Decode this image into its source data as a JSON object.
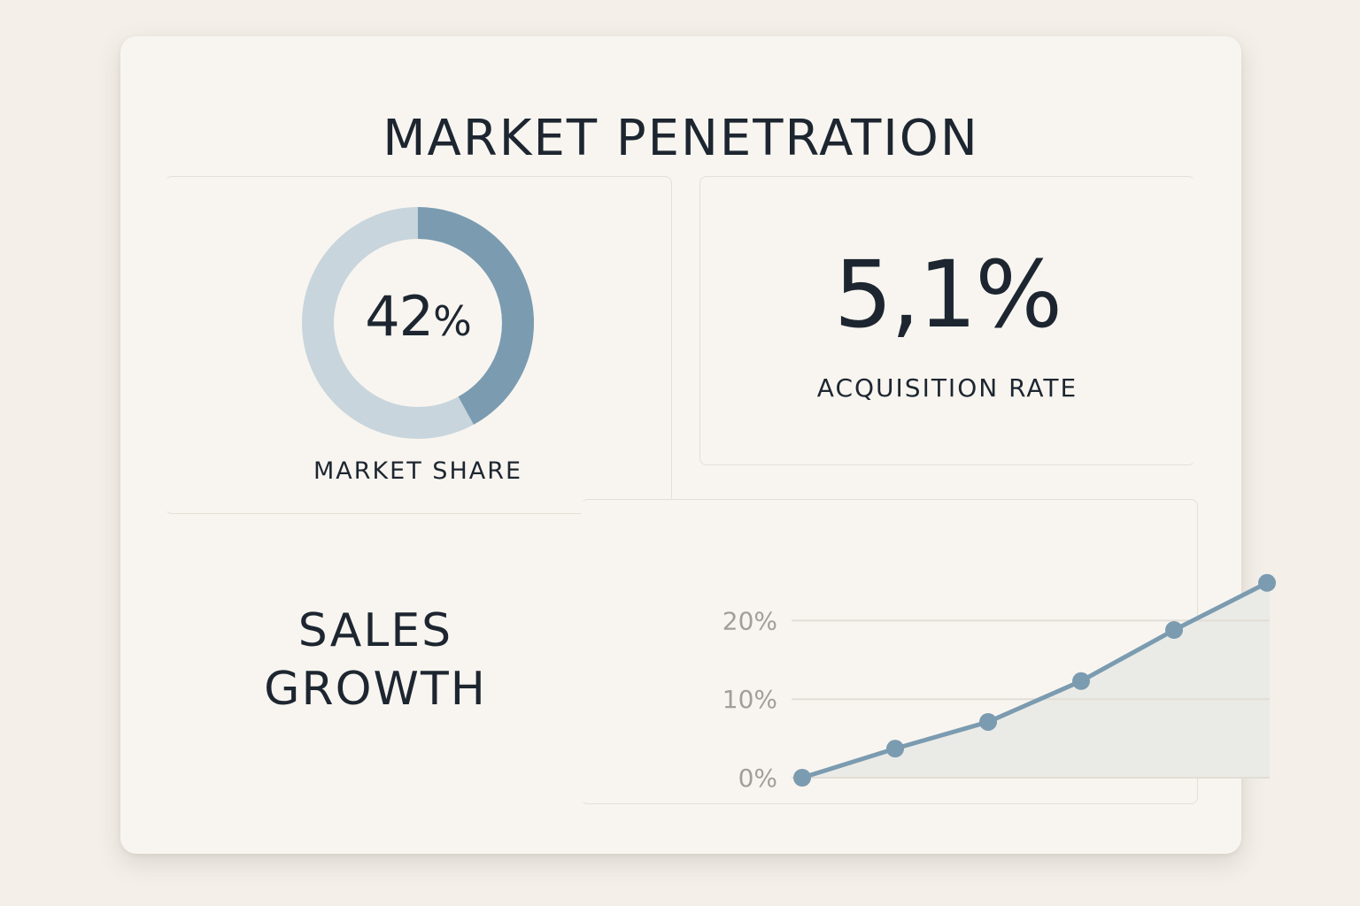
{
  "title": "MARKET PENETRATION",
  "market_share": {
    "value": 42,
    "number": "42",
    "unit": "%",
    "label": "MARKET SHARE",
    "colors": {
      "filled": "#7b9bb0",
      "remaining": "#c8d5dc"
    }
  },
  "acquisition": {
    "value": "5,1%",
    "label": "ACQUISITION RATE"
  },
  "sales_growth": {
    "title_lines": [
      "SALES",
      "GROWTH"
    ]
  },
  "chart_data": {
    "type": "area",
    "x": [
      1,
      2,
      3,
      4,
      5,
      6
    ],
    "values": [
      0,
      3.7,
      7.1,
      12.3,
      18.8,
      24.8
    ],
    "yticks": [
      0,
      10,
      20
    ],
    "ytick_labels": [
      "0%",
      "10%",
      "20%"
    ],
    "ylim": [
      0,
      25
    ],
    "grid": true,
    "colors": {
      "line": "#7b9bb0",
      "fill": "#eaebe7",
      "grid": "#e2ddd5",
      "tick": "#a39e98"
    }
  }
}
